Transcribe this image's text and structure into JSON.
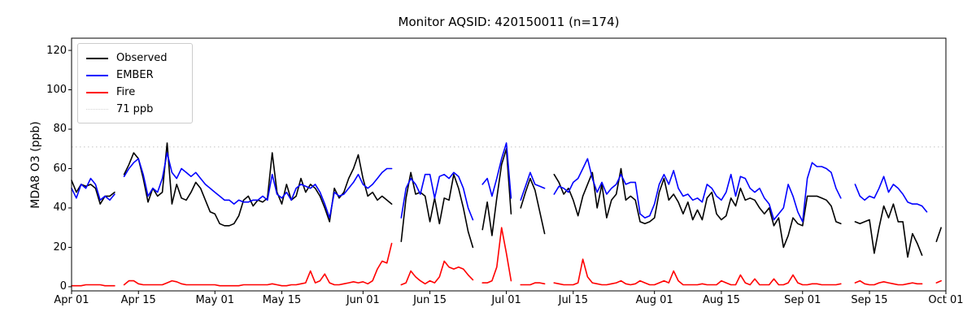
{
  "figure": {
    "title": "Monitor AQSID: 420150011 (n=174)",
    "ylabel": "MDA8 O3 (ppb)"
  },
  "legend": {
    "items": [
      {
        "label": "Observed",
        "color": "#000000",
        "style": "solid"
      },
      {
        "label": "EMBER",
        "color": "#0000ff",
        "style": "solid"
      },
      {
        "label": "Fire",
        "color": "#ff0000",
        "style": "solid"
      },
      {
        "label": "71 ppb",
        "color": "#d3d3d3",
        "style": "dotted"
      }
    ]
  },
  "chart_data": {
    "type": "line",
    "title": "Monitor AQSID: 420150011 (n=174)",
    "xlabel": "",
    "ylabel": "MDA8 O3 (ppb)",
    "grid": false,
    "legend_position": "upper left",
    "x_unit": "day index from Apr 01",
    "x_total_days": 183,
    "x_tick_days": [
      0,
      14,
      30,
      44,
      61,
      75,
      91,
      105,
      122,
      136,
      153,
      167,
      183
    ],
    "x_tick_labels": [
      "Apr 01",
      "Apr 15",
      "May 01",
      "May 15",
      "Jun 01",
      "Jun 15",
      "Jul 01",
      "Jul 15",
      "Aug 01",
      "Aug 15",
      "Sep 01",
      "Sep 15",
      "Oct 01"
    ],
    "y_ticks": [
      0,
      20,
      40,
      60,
      80,
      100,
      120
    ],
    "ylim": [
      -2.1,
      126.2
    ],
    "threshold": {
      "value": 71,
      "label": "71 ppb",
      "color": "#d3d3d3"
    },
    "series": [
      {
        "name": "Observed",
        "color": "#000000",
        "values": [
          54,
          48,
          52,
          51,
          52,
          50,
          42,
          46,
          46,
          48,
          null,
          57,
          62,
          68,
          65,
          55,
          43,
          50,
          46,
          48,
          73,
          42,
          52,
          45,
          44,
          48,
          53,
          50,
          44,
          38,
          37,
          32,
          31,
          31,
          32,
          36,
          44,
          46,
          41,
          44,
          43,
          45,
          68,
          48,
          42,
          52,
          44,
          46,
          55,
          48,
          52,
          50,
          46,
          40,
          33,
          50,
          45,
          48,
          55,
          60,
          67,
          55,
          46,
          48,
          44,
          46,
          44,
          42,
          null,
          23,
          45,
          58,
          47,
          48,
          46,
          33,
          45,
          32,
          45,
          44,
          57,
          50,
          40,
          28,
          20,
          null,
          29,
          43,
          26,
          45,
          62,
          70,
          37,
          null,
          40,
          48,
          55,
          49,
          38,
          27,
          null,
          57,
          53,
          47,
          50,
          44,
          36,
          46,
          52,
          58,
          40,
          52,
          35,
          44,
          47,
          60,
          44,
          46,
          44,
          33,
          32,
          33,
          35,
          48,
          55,
          44,
          47,
          43,
          37,
          43,
          34,
          39,
          34,
          45,
          48,
          37,
          34,
          36,
          45,
          41,
          50,
          44,
          45,
          44,
          40,
          37,
          40,
          31,
          35,
          20,
          26,
          35,
          32,
          31,
          46,
          46,
          46,
          45,
          44,
          41,
          33,
          32,
          null,
          null,
          33,
          32,
          33,
          34,
          17,
          30,
          41,
          35,
          42,
          33,
          33,
          15,
          27,
          22,
          16,
          null,
          null,
          23,
          30
        ]
      },
      {
        "name": "EMBER",
        "color": "#0000ff",
        "values": [
          50,
          45,
          52,
          50,
          55,
          52,
          44,
          46,
          44,
          47,
          null,
          56,
          60,
          63,
          65,
          57,
          46,
          50,
          48,
          55,
          68,
          58,
          55,
          60,
          58,
          56,
          58,
          55,
          52,
          50,
          48,
          46,
          44,
          44,
          42,
          44,
          43,
          43,
          44,
          44,
          46,
          44,
          57,
          47,
          45,
          48,
          44,
          50,
          52,
          51,
          50,
          52,
          48,
          42,
          35,
          48,
          46,
          47,
          50,
          53,
          57,
          52,
          50,
          52,
          55,
          58,
          60,
          60,
          null,
          35,
          50,
          55,
          52,
          47,
          57,
          57,
          45,
          56,
          57,
          55,
          58,
          56,
          50,
          40,
          34,
          null,
          52,
          55,
          46,
          55,
          65,
          73,
          45,
          null,
          44,
          51,
          58,
          52,
          51,
          50,
          null,
          47,
          51,
          50,
          48,
          53,
          55,
          60,
          65,
          55,
          48,
          53,
          47,
          50,
          52,
          57,
          52,
          53,
          53,
          37,
          35,
          36,
          42,
          52,
          57,
          52,
          59,
          50,
          46,
          47,
          44,
          45,
          43,
          52,
          50,
          46,
          44,
          48,
          57,
          46,
          56,
          55,
          50,
          48,
          50,
          45,
          42,
          34,
          37,
          40,
          52,
          46,
          38,
          33,
          55,
          63,
          61,
          61,
          60,
          58,
          50,
          45,
          null,
          null,
          52,
          46,
          44,
          46,
          45,
          50,
          56,
          48,
          52,
          50,
          47,
          43,
          42,
          42,
          41,
          38,
          null,
          null,
          null
        ]
      },
      {
        "name": "Fire",
        "color": "#ff0000",
        "values": [
          0.5,
          0.5,
          0.5,
          1,
          1,
          1,
          1,
          0.5,
          0.5,
          0.5,
          null,
          1,
          3,
          3,
          1.5,
          1,
          1,
          1,
          1,
          1,
          2,
          3,
          2.5,
          1.5,
          1,
          1,
          1,
          1,
          1,
          1,
          1,
          0.5,
          0.5,
          0.5,
          0.5,
          0.5,
          1,
          1,
          1,
          1,
          1,
          1,
          1.5,
          1,
          0.5,
          0.5,
          1,
          1,
          1.5,
          2,
          8,
          2,
          3,
          6.5,
          2,
          1,
          1,
          1.5,
          2,
          2.5,
          2,
          2.5,
          1.5,
          3,
          9,
          13,
          12,
          22,
          null,
          1,
          2,
          8,
          5,
          3,
          1.5,
          3,
          2,
          5,
          13,
          10,
          9,
          10,
          9,
          6,
          3.5,
          null,
          2,
          2,
          3,
          10,
          30,
          17,
          3,
          null,
          1,
          1,
          1,
          2,
          2,
          1.5,
          null,
          2,
          1.5,
          1,
          1,
          1,
          2,
          14,
          5,
          2,
          1.5,
          1,
          1,
          1.5,
          2,
          3,
          1.5,
          1,
          1.5,
          3,
          2,
          1,
          1,
          2,
          3,
          2,
          8,
          3,
          1,
          1,
          1,
          1,
          1.5,
          1,
          1,
          1,
          3,
          2,
          1,
          1,
          6,
          2,
          1,
          4,
          1,
          1,
          1,
          4,
          1,
          1,
          2,
          6,
          2,
          1,
          1,
          1.5,
          1.5,
          1,
          1,
          1,
          1,
          1.5,
          null,
          null,
          2,
          3,
          1.5,
          1,
          1,
          2,
          2.5,
          2,
          1.5,
          1,
          1,
          1.5,
          2,
          1.5,
          1.5,
          null,
          null,
          2,
          3
        ]
      }
    ]
  }
}
